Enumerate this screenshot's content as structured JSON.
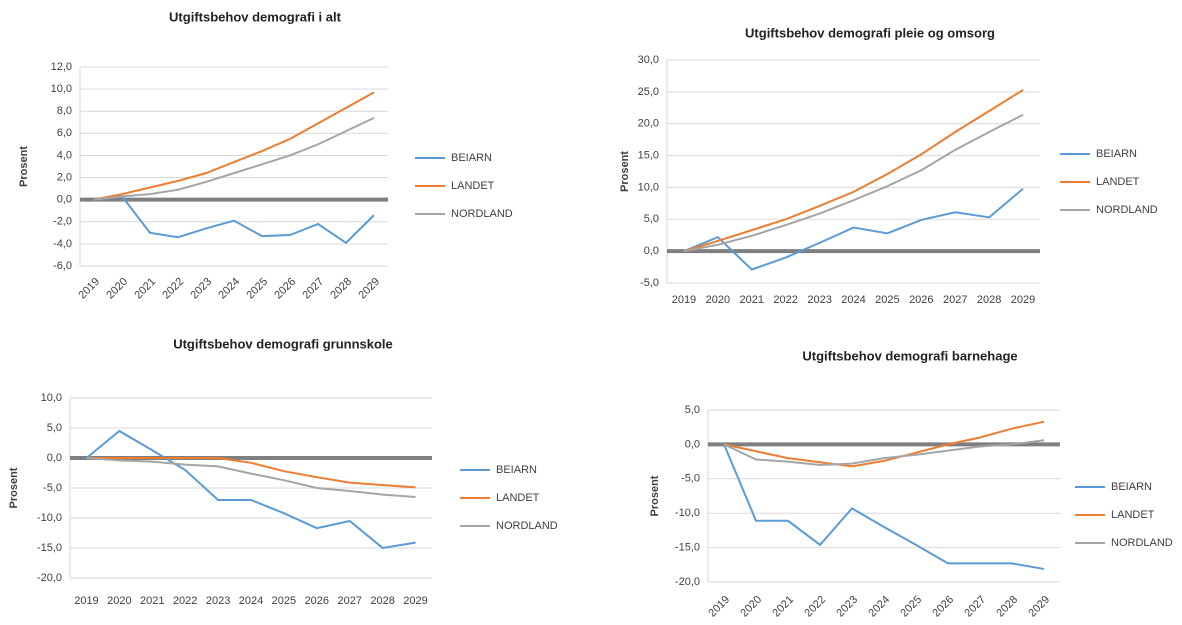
{
  "chart_data": [
    {
      "type": "line",
      "title": "Utgiftsbehov demografi i alt",
      "y_label": "Prosent",
      "categories": [
        "2019",
        "2020",
        "2021",
        "2022",
        "2023",
        "2024",
        "2025",
        "2026",
        "2027",
        "2028",
        "2029"
      ],
      "ylim": [
        -6,
        12
      ],
      "yticks": [
        {
          "value": -6,
          "label": "-6,0"
        },
        {
          "value": -4,
          "label": "-4,0"
        },
        {
          "value": -2,
          "label": "-2,0"
        },
        {
          "value": 0,
          "label": "0,0"
        },
        {
          "value": 2,
          "label": "2,0"
        },
        {
          "value": 4,
          "label": "4,0"
        },
        {
          "value": 6,
          "label": "6,0"
        },
        {
          "value": 8,
          "label": "8,0"
        },
        {
          "value": 10,
          "label": "10,0"
        },
        {
          "value": 12,
          "label": "12,0"
        }
      ],
      "grid": true,
      "series": [
        {
          "name": "BEIARN",
          "color": "#5b9bd5",
          "values": [
            0,
            0.3,
            -3.0,
            -3.4,
            -2.6,
            -1.9,
            -3.3,
            -3.2,
            -2.2,
            -3.9,
            -1.4
          ]
        },
        {
          "name": "LANDET",
          "color": "#ed7d31",
          "values": [
            0,
            0.5,
            1.1,
            1.7,
            2.4,
            3.4,
            4.4,
            5.5,
            6.9,
            8.3,
            9.7
          ]
        },
        {
          "name": "NORDLAND",
          "color": "#a5a5a5",
          "values": [
            0,
            0.3,
            0.5,
            0.9,
            1.6,
            2.4,
            3.2,
            4.0,
            5.0,
            6.2,
            7.4
          ]
        }
      ]
    },
    {
      "type": "line",
      "title": "Utgiftsbehov demografi pleie og omsorg",
      "y_label": "Prosent",
      "categories": [
        "2019",
        "2020",
        "2021",
        "2022",
        "2023",
        "2024",
        "2025",
        "2026",
        "2027",
        "2028",
        "2029"
      ],
      "ylim": [
        -5,
        30
      ],
      "yticks": [
        {
          "value": -5,
          "label": "-5,0"
        },
        {
          "value": 0,
          "label": "0,0"
        },
        {
          "value": 5,
          "label": "5,0"
        },
        {
          "value": 10,
          "label": "10,0"
        },
        {
          "value": 15,
          "label": "15,0"
        },
        {
          "value": 20,
          "label": "20,0"
        },
        {
          "value": 25,
          "label": "25,0"
        },
        {
          "value": 30,
          "label": "30,0"
        }
      ],
      "grid": true,
      "series": [
        {
          "name": "BEIARN",
          "color": "#5b9bd5",
          "values": [
            0,
            2.2,
            -2.9,
            -1.0,
            1.3,
            3.7,
            2.8,
            4.9,
            6.1,
            5.3,
            9.8
          ]
        },
        {
          "name": "LANDET",
          "color": "#ed7d31",
          "values": [
            0,
            1.6,
            3.3,
            5.0,
            7.1,
            9.3,
            12.1,
            15.2,
            18.7,
            22.0,
            25.3
          ]
        },
        {
          "name": "NORDLAND",
          "color": "#a5a5a5",
          "values": [
            0,
            1.0,
            2.4,
            4.1,
            5.9,
            8.0,
            10.2,
            12.7,
            15.9,
            18.7,
            21.4
          ]
        }
      ]
    },
    {
      "type": "line",
      "title": "Utgiftsbehov demografi grunnskole",
      "y_label": "Prosent",
      "categories": [
        "2019",
        "2020",
        "2021",
        "2022",
        "2023",
        "2024",
        "2025",
        "2026",
        "2027",
        "2028",
        "2029"
      ],
      "ylim": [
        -20,
        10
      ],
      "yticks": [
        {
          "value": -20,
          "label": "-20,0"
        },
        {
          "value": -15,
          "label": "-15,0"
        },
        {
          "value": -10,
          "label": "-10,0"
        },
        {
          "value": -5,
          "label": "-5,0"
        },
        {
          "value": 0,
          "label": "0,0"
        },
        {
          "value": 5,
          "label": "5,0"
        },
        {
          "value": 10,
          "label": "10,0"
        }
      ],
      "grid": true,
      "series": [
        {
          "name": "BEIARN",
          "color": "#5b9bd5",
          "values": [
            0,
            4.5,
            1.3,
            -2.0,
            -7.0,
            -7.0,
            -9.2,
            -11.7,
            -10.5,
            -15.0,
            -14.1
          ]
        },
        {
          "name": "LANDET",
          "color": "#ed7d31",
          "values": [
            0,
            0,
            0,
            0,
            0,
            -0.8,
            -2.2,
            -3.2,
            -4.1,
            -4.5,
            -4.9
          ]
        },
        {
          "name": "NORDLAND",
          "color": "#a5a5a5",
          "values": [
            0,
            -0.4,
            -0.6,
            -1.1,
            -1.4,
            -2.6,
            -3.7,
            -5.0,
            -5.5,
            -6.1,
            -6.5
          ]
        }
      ]
    },
    {
      "type": "line",
      "title": "Utgiftsbehov demografi barnehage",
      "y_label": "Prosent",
      "categories": [
        "2019",
        "2020",
        "2021",
        "2022",
        "2023",
        "2024",
        "2025",
        "2026",
        "2027",
        "2028",
        "2029"
      ],
      "ylim": [
        -20,
        5
      ],
      "yticks": [
        {
          "value": -20,
          "label": "-20,0"
        },
        {
          "value": -15,
          "label": "-15,0"
        },
        {
          "value": -10,
          "label": "-10,0"
        },
        {
          "value": -5,
          "label": "-5,0"
        },
        {
          "value": 0,
          "label": "0,0"
        },
        {
          "value": 5,
          "label": "5,0"
        }
      ],
      "grid": true,
      "series": [
        {
          "name": "BEIARN",
          "color": "#5b9bd5",
          "values": [
            0,
            -11.1,
            -11.1,
            -14.6,
            -9.3,
            -12.0,
            -14.6,
            -17.3,
            -17.3,
            -17.3,
            -18.1
          ]
        },
        {
          "name": "LANDET",
          "color": "#ed7d31",
          "values": [
            0,
            -1.0,
            -2.0,
            -2.6,
            -3.2,
            -2.4,
            -1.2,
            0,
            1.0,
            2.3,
            3.3
          ]
        },
        {
          "name": "NORDLAND",
          "color": "#a5a5a5",
          "values": [
            0,
            -2.2,
            -2.5,
            -3.0,
            -2.8,
            -2.0,
            -1.5,
            -0.9,
            -0.3,
            0,
            0.6
          ]
        }
      ]
    }
  ]
}
